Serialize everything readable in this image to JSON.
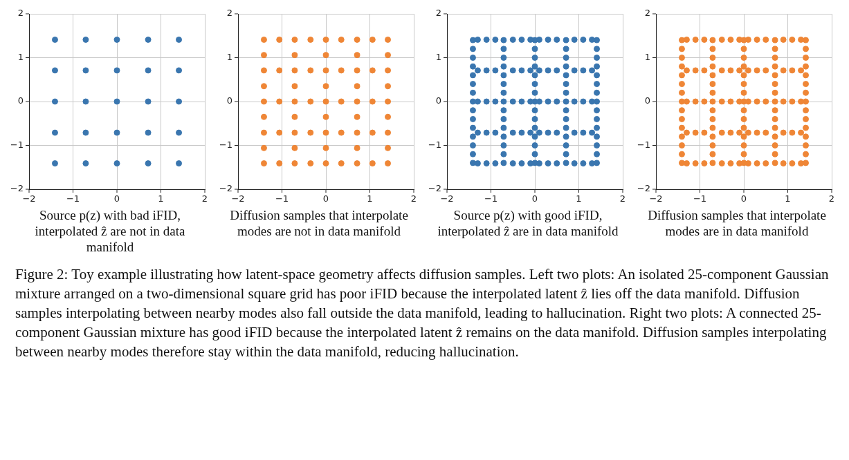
{
  "chart_data": [
    {
      "type": "scatter",
      "xlim": [
        -2,
        2
      ],
      "ylim": [
        -2,
        2
      ],
      "xticks": [
        -2,
        -1,
        0,
        1,
        2
      ],
      "yticks": [
        -2,
        -1,
        0,
        1,
        2
      ],
      "grid": true,
      "marker": "circle",
      "series": [
        {
          "color": "#3a76af",
          "x": [
            -1.41,
            -0.71,
            0,
            0.71,
            1.41,
            -1.41,
            -0.71,
            0,
            0.71,
            1.41,
            -1.41,
            -0.71,
            0,
            0.71,
            1.41,
            -1.41,
            -0.71,
            0,
            0.71,
            1.41,
            -1.41,
            -0.71,
            0,
            0.71,
            1.41
          ],
          "values": [
            1.41,
            1.41,
            1.41,
            1.41,
            1.41,
            0.71,
            0.71,
            0.71,
            0.71,
            0.71,
            0,
            0,
            0,
            0,
            0,
            -0.71,
            -0.71,
            -0.71,
            -0.71,
            -0.71,
            -1.41,
            -1.41,
            -1.41,
            -1.41,
            -1.41
          ]
        }
      ],
      "annotations": [
        "Source p(z) with bad iFID, interpolated ẑ are not in data manifold"
      ]
    },
    {
      "type": "scatter",
      "xlim": [
        -2,
        2
      ],
      "ylim": [
        -2,
        2
      ],
      "xticks": [
        -2,
        -1,
        0,
        1,
        2
      ],
      "yticks": [
        -2,
        -1,
        0,
        1,
        2
      ],
      "grid": true,
      "marker": "circle",
      "series": [
        {
          "color": "#ef8636",
          "x": [
            -1.41,
            -0.71,
            0,
            0.71,
            1.41,
            -1.41,
            -0.71,
            0,
            0.71,
            1.41,
            -1.41,
            -0.71,
            0,
            0.71,
            1.41,
            -1.41,
            -0.71,
            0,
            0.71,
            1.41,
            -1.41,
            -0.71,
            0,
            0.71,
            1.41,
            -1.06,
            -0.35,
            0.35,
            1.06,
            -1.06,
            -0.35,
            0.35,
            1.06,
            -1.06,
            -0.35,
            0.35,
            1.06,
            -1.06,
            -0.35,
            0.35,
            1.06,
            -1.06,
            -0.35,
            0.35,
            1.06,
            -1.41,
            -1.41,
            -1.41,
            -1.41,
            -0.71,
            -0.71,
            -0.71,
            -0.71,
            0,
            0,
            0,
            0,
            0.71,
            0.71,
            0.71,
            0.71,
            1.41,
            1.41,
            1.41,
            1.41
          ],
          "values": [
            1.41,
            1.41,
            1.41,
            1.41,
            1.41,
            0.71,
            0.71,
            0.71,
            0.71,
            0.71,
            0,
            0,
            0,
            0,
            0,
            -0.71,
            -0.71,
            -0.71,
            -0.71,
            -0.71,
            -1.41,
            -1.41,
            -1.41,
            -1.41,
            -1.41,
            1.41,
            1.41,
            1.41,
            1.41,
            0.71,
            0.71,
            0.71,
            0.71,
            0,
            0,
            0,
            0,
            -0.71,
            -0.71,
            -0.71,
            -0.71,
            -1.41,
            -1.41,
            -1.41,
            -1.41,
            -1.06,
            -0.35,
            0.35,
            1.06,
            -1.06,
            -0.35,
            0.35,
            1.06,
            -1.06,
            -0.35,
            0.35,
            1.06,
            -1.06,
            -0.35,
            0.35,
            1.06,
            -1.06,
            -0.35,
            0.35,
            1.06
          ]
        }
      ],
      "annotations": [
        "Diffusion samples that interpolate modes are not in data manifold"
      ]
    },
    {
      "type": "scatter",
      "xlim": [
        -2,
        2
      ],
      "ylim": [
        -2,
        2
      ],
      "xticks": [
        -2,
        -1,
        0,
        1,
        2
      ],
      "yticks": [
        -2,
        -1,
        0,
        1,
        2
      ],
      "grid": true,
      "marker": "circle",
      "series": [
        {
          "color": "#3a76af",
          "x": [
            -1.41,
            -1.41,
            -1.41,
            -1.41,
            -1.41,
            -1.41,
            -1.41,
            -1.41,
            -1.41,
            -1.41,
            -1.41,
            -1.41,
            -1.41,
            -1.41,
            -1.41,
            -0.71,
            -0.71,
            -0.71,
            -0.71,
            -0.71,
            -0.71,
            -0.71,
            -0.71,
            -0.71,
            -0.71,
            -0.71,
            -0.71,
            -0.71,
            -0.71,
            -0.71,
            0,
            0,
            0,
            0,
            0,
            0,
            0,
            0,
            0,
            0,
            0,
            0,
            0,
            0,
            0,
            0.71,
            0.71,
            0.71,
            0.71,
            0.71,
            0.71,
            0.71,
            0.71,
            0.71,
            0.71,
            0.71,
            0.71,
            0.71,
            0.71,
            0.71,
            1.41,
            1.41,
            1.41,
            1.41,
            1.41,
            1.41,
            1.41,
            1.41,
            1.41,
            1.41,
            1.41,
            1.41,
            1.41,
            1.41,
            1.41,
            -1.3,
            -1.1,
            -0.9,
            -0.5,
            -0.3,
            -0.1,
            0.1,
            0.3,
            0.5,
            0.9,
            1.1,
            1.3,
            -1.3,
            -1.1,
            -0.9,
            -0.5,
            -0.3,
            -0.1,
            0.1,
            0.3,
            0.5,
            0.9,
            1.1,
            1.3,
            -1.3,
            -1.1,
            -0.9,
            -0.5,
            -0.3,
            -0.1,
            0.1,
            0.3,
            0.5,
            0.9,
            1.1,
            1.3,
            -1.3,
            -1.1,
            -0.9,
            -0.5,
            -0.3,
            -0.1,
            0.1,
            0.3,
            0.5,
            0.9,
            1.1,
            1.3,
            -1.3,
            -1.1,
            -0.9,
            -0.5,
            -0.3,
            -0.1,
            0.1,
            0.3,
            0.5,
            0.9,
            1.1,
            1.3
          ],
          "values": [
            -1.4,
            -1.2,
            -1,
            -0.8,
            -0.6,
            -0.4,
            -0.2,
            0,
            0.2,
            0.4,
            0.6,
            0.8,
            1,
            1.2,
            1.4,
            -1.4,
            -1.2,
            -1,
            -0.8,
            -0.6,
            -0.4,
            -0.2,
            0,
            0.2,
            0.4,
            0.6,
            0.8,
            1,
            1.2,
            1.4,
            -1.4,
            -1.2,
            -1,
            -0.8,
            -0.6,
            -0.4,
            -0.2,
            0,
            0.2,
            0.4,
            0.6,
            0.8,
            1,
            1.2,
            1.4,
            -1.4,
            -1.2,
            -1,
            -0.8,
            -0.6,
            -0.4,
            -0.2,
            0,
            0.2,
            0.4,
            0.6,
            0.8,
            1,
            1.2,
            1.4,
            -1.4,
            -1.2,
            -1,
            -0.8,
            -0.6,
            -0.4,
            -0.2,
            0,
            0.2,
            0.4,
            0.6,
            0.8,
            1,
            1.2,
            1.4,
            -1.41,
            -1.41,
            -1.41,
            -1.41,
            -1.41,
            -1.41,
            -1.41,
            -1.41,
            -1.41,
            -1.41,
            -1.41,
            -1.41,
            -0.71,
            -0.71,
            -0.71,
            -0.71,
            -0.71,
            -0.71,
            -0.71,
            -0.71,
            -0.71,
            -0.71,
            -0.71,
            -0.71,
            0,
            0,
            0,
            0,
            0,
            0,
            0,
            0,
            0,
            0,
            0,
            0,
            0.71,
            0.71,
            0.71,
            0.71,
            0.71,
            0.71,
            0.71,
            0.71,
            0.71,
            0.71,
            0.71,
            0.71,
            1.41,
            1.41,
            1.41,
            1.41,
            1.41,
            1.41,
            1.41,
            1.41,
            1.41,
            1.41,
            1.41,
            1.41
          ]
        }
      ],
      "annotations": [
        "Source p(z) with good iFID, interpolated ẑ are in data manifold"
      ]
    },
    {
      "type": "scatter",
      "xlim": [
        -2,
        2
      ],
      "ylim": [
        -2,
        2
      ],
      "xticks": [
        -2,
        -1,
        0,
        1,
        2
      ],
      "yticks": [
        -2,
        -1,
        0,
        1,
        2
      ],
      "grid": true,
      "marker": "circle",
      "series": [
        {
          "color": "#ef8636",
          "x": [
            -1.41,
            -1.41,
            -1.41,
            -1.41,
            -1.41,
            -1.41,
            -1.41,
            -1.41,
            -1.41,
            -1.41,
            -1.41,
            -1.41,
            -1.41,
            -1.41,
            -1.41,
            -0.71,
            -0.71,
            -0.71,
            -0.71,
            -0.71,
            -0.71,
            -0.71,
            -0.71,
            -0.71,
            -0.71,
            -0.71,
            -0.71,
            -0.71,
            -0.71,
            -0.71,
            0,
            0,
            0,
            0,
            0,
            0,
            0,
            0,
            0,
            0,
            0,
            0,
            0,
            0,
            0,
            0.71,
            0.71,
            0.71,
            0.71,
            0.71,
            0.71,
            0.71,
            0.71,
            0.71,
            0.71,
            0.71,
            0.71,
            0.71,
            0.71,
            0.71,
            1.41,
            1.41,
            1.41,
            1.41,
            1.41,
            1.41,
            1.41,
            1.41,
            1.41,
            1.41,
            1.41,
            1.41,
            1.41,
            1.41,
            1.41,
            -1.3,
            -1.1,
            -0.9,
            -0.5,
            -0.3,
            -0.1,
            0.1,
            0.3,
            0.5,
            0.9,
            1.1,
            1.3,
            -1.3,
            -1.1,
            -0.9,
            -0.5,
            -0.3,
            -0.1,
            0.1,
            0.3,
            0.5,
            0.9,
            1.1,
            1.3,
            -1.3,
            -1.1,
            -0.9,
            -0.5,
            -0.3,
            -0.1,
            0.1,
            0.3,
            0.5,
            0.9,
            1.1,
            1.3,
            -1.3,
            -1.1,
            -0.9,
            -0.5,
            -0.3,
            -0.1,
            0.1,
            0.3,
            0.5,
            0.9,
            1.1,
            1.3,
            -1.3,
            -1.1,
            -0.9,
            -0.5,
            -0.3,
            -0.1,
            0.1,
            0.3,
            0.5,
            0.9,
            1.1,
            1.3
          ],
          "values": [
            -1.4,
            -1.2,
            -1,
            -0.8,
            -0.6,
            -0.4,
            -0.2,
            0,
            0.2,
            0.4,
            0.6,
            0.8,
            1,
            1.2,
            1.4,
            -1.4,
            -1.2,
            -1,
            -0.8,
            -0.6,
            -0.4,
            -0.2,
            0,
            0.2,
            0.4,
            0.6,
            0.8,
            1,
            1.2,
            1.4,
            -1.4,
            -1.2,
            -1,
            -0.8,
            -0.6,
            -0.4,
            -0.2,
            0,
            0.2,
            0.4,
            0.6,
            0.8,
            1,
            1.2,
            1.4,
            -1.4,
            -1.2,
            -1,
            -0.8,
            -0.6,
            -0.4,
            -0.2,
            0,
            0.2,
            0.4,
            0.6,
            0.8,
            1,
            1.2,
            1.4,
            -1.4,
            -1.2,
            -1,
            -0.8,
            -0.6,
            -0.4,
            -0.2,
            0,
            0.2,
            0.4,
            0.6,
            0.8,
            1,
            1.2,
            1.4,
            -1.41,
            -1.41,
            -1.41,
            -1.41,
            -1.41,
            -1.41,
            -1.41,
            -1.41,
            -1.41,
            -1.41,
            -1.41,
            -1.41,
            -0.71,
            -0.71,
            -0.71,
            -0.71,
            -0.71,
            -0.71,
            -0.71,
            -0.71,
            -0.71,
            -0.71,
            -0.71,
            -0.71,
            0,
            0,
            0,
            0,
            0,
            0,
            0,
            0,
            0,
            0,
            0,
            0,
            0.71,
            0.71,
            0.71,
            0.71,
            0.71,
            0.71,
            0.71,
            0.71,
            0.71,
            0.71,
            0.71,
            0.71,
            1.41,
            1.41,
            1.41,
            1.41,
            1.41,
            1.41,
            1.41,
            1.41,
            1.41,
            1.41,
            1.41,
            1.41
          ]
        }
      ],
      "annotations": [
        "Diffusion samples that interpolate modes are in data manifold"
      ]
    },
    {
      "type": "other",
      "annotations": [
        "Figure 2: Toy example illustrating how latent-space geometry affects diffusion samples. Left two plots: An isolated 25-component Gaussian mixture arranged on a two-dimensional square grid has poor iFID because the interpolated latent ẑ lies off the data manifold. Diffusion samples interpolating between nearby modes also fall outside the data manifold, leading to hallucination. Right two plots: A connected 25-component Gaussian mixture has good iFID because the interpolated latent ẑ remains on the data manifold. Diffusion samples interpolating between nearby modes therefore stay within the data manifold, reducing hallucination."
      ]
    }
  ]
}
